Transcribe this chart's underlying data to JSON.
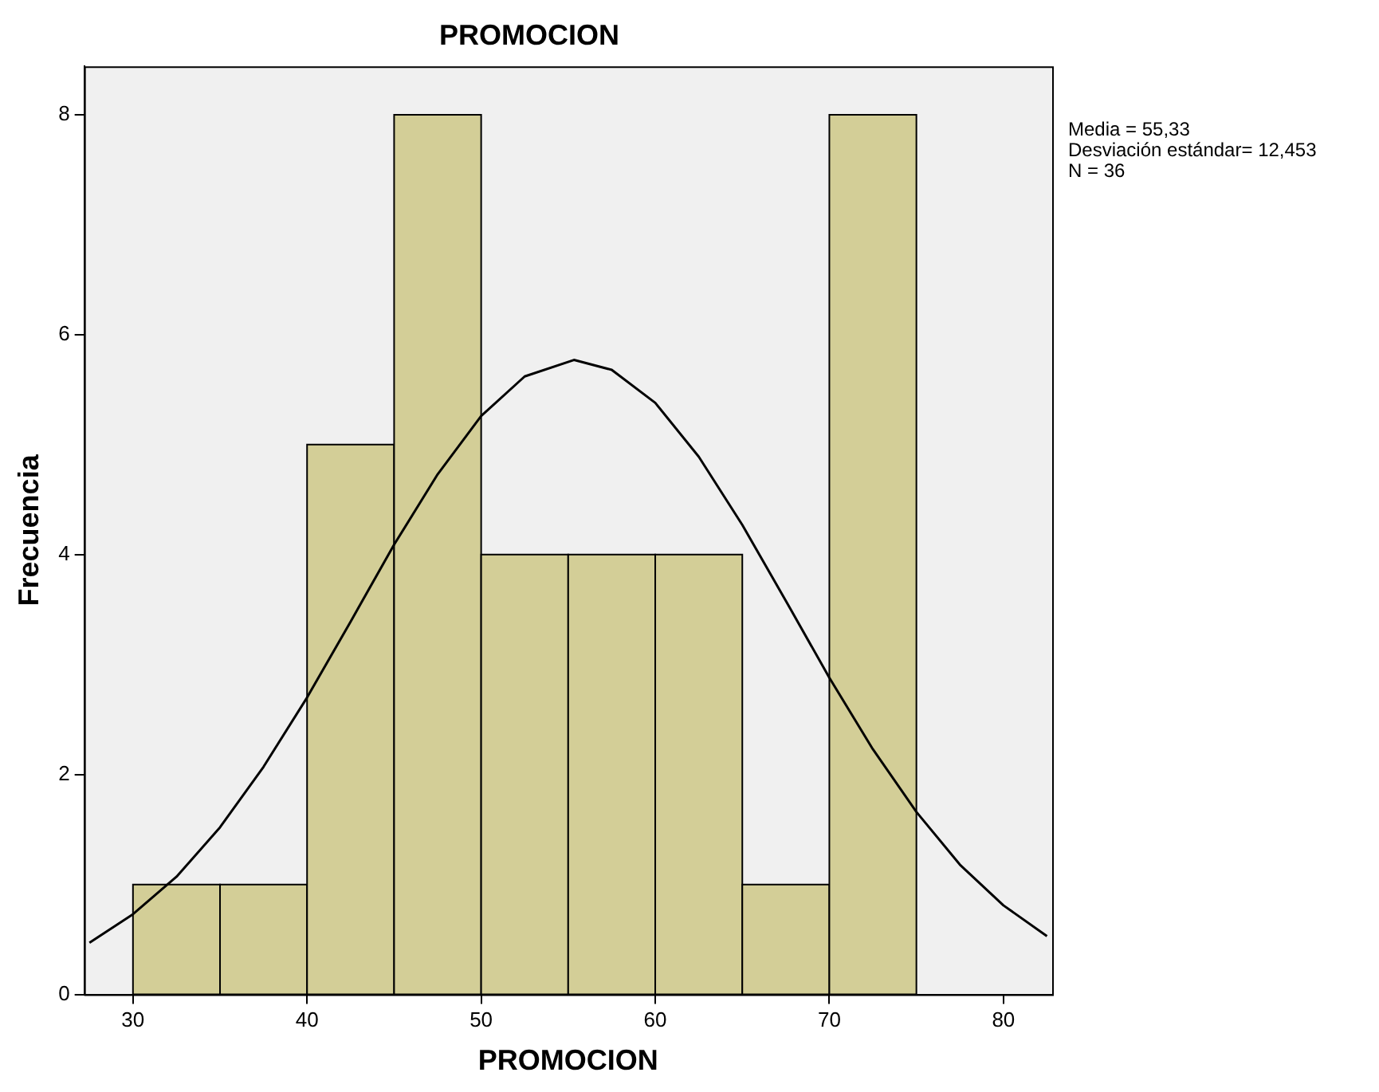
{
  "chart_data": {
    "type": "histogram",
    "title": "PROMOCION",
    "xlabel": "PROMOCION",
    "ylabel": "Frecuencia",
    "bins": [
      30,
      35,
      40,
      45,
      50,
      55,
      60,
      65,
      70,
      75
    ],
    "values": [
      1,
      1,
      5,
      8,
      4,
      4,
      4,
      1,
      8
    ],
    "color": "#d3ce97",
    "series": [
      {
        "type": "line",
        "color": "#000000",
        "x": [
          27.5,
          30,
          32.5,
          35,
          37.5,
          40,
          42.5,
          45,
          47.5,
          50,
          52.5,
          55.33,
          57.5,
          60,
          62.5,
          65,
          67.5,
          70,
          72.5,
          75,
          77.5,
          80,
          82.5
        ],
        "values": [
          0.47,
          0.73,
          1.07,
          1.52,
          2.07,
          2.7,
          3.39,
          4.09,
          4.73,
          5.26,
          5.62,
          5.77,
          5.68,
          5.38,
          4.89,
          4.27,
          3.58,
          2.88,
          2.23,
          1.66,
          1.18,
          0.81,
          0.53
        ]
      }
    ],
    "xlim": [
      27.2,
      82.8
    ],
    "xticks": [
      30,
      40,
      50,
      60,
      70,
      80
    ],
    "ylim": [
      0,
      8.44
    ],
    "yticks": [
      0,
      2,
      4,
      6,
      8
    ],
    "grid": false,
    "legend": false,
    "annotations": [
      "Media = 55,33",
      "Desviación estándar= 12,453",
      "N = 36"
    ]
  }
}
